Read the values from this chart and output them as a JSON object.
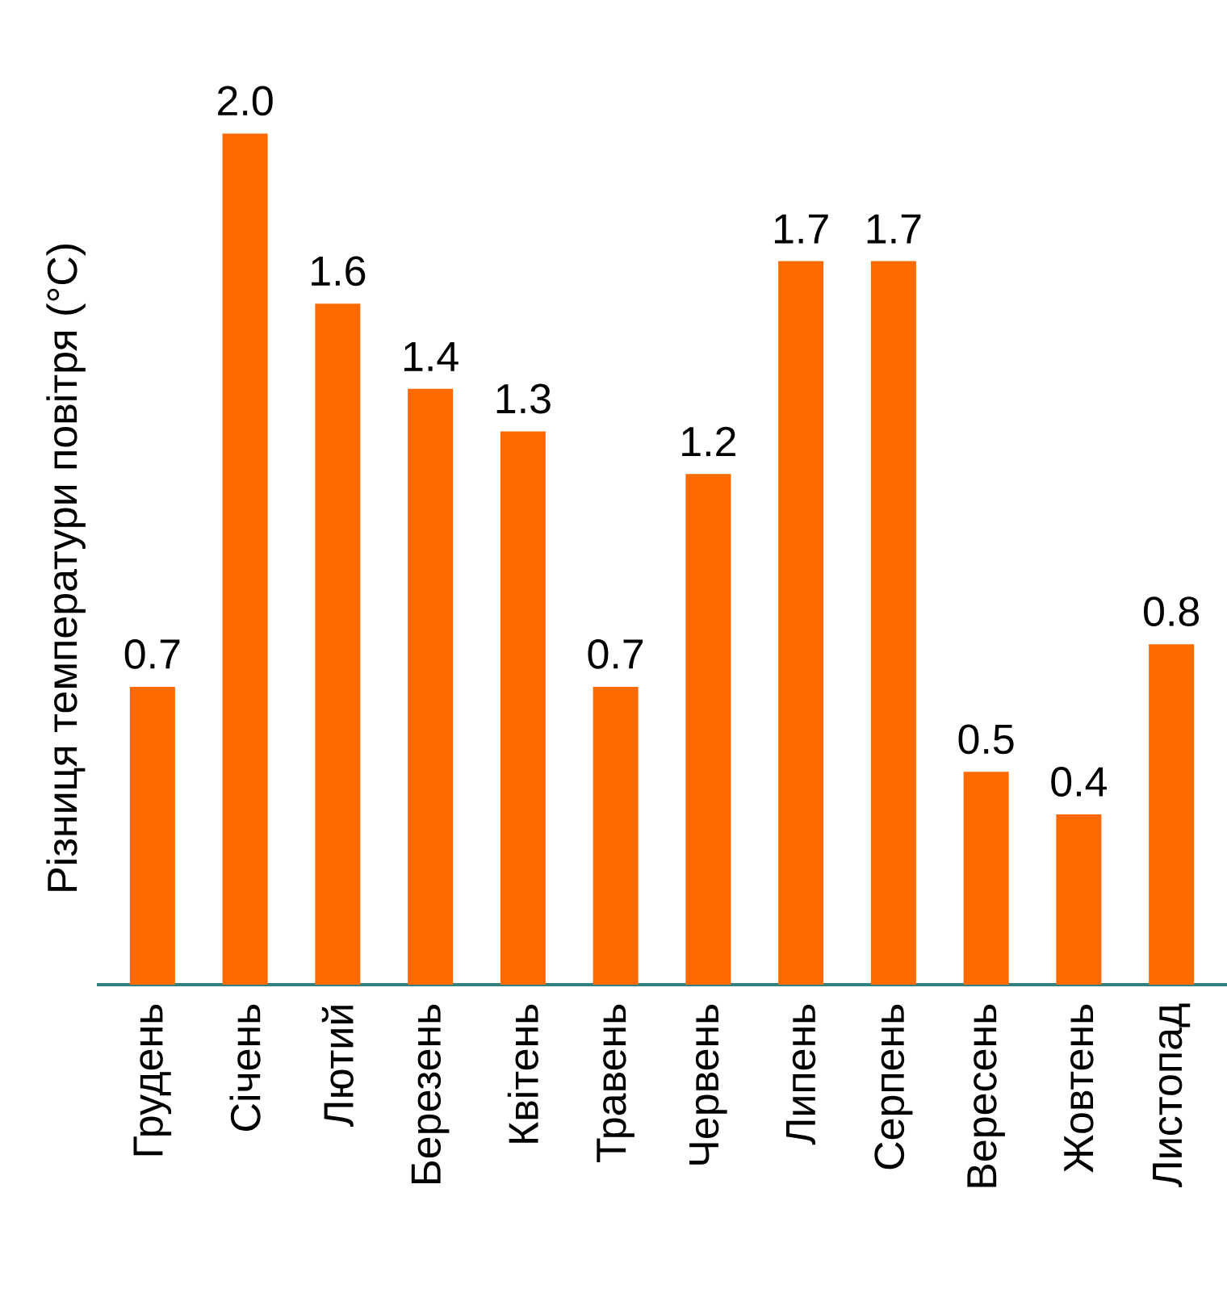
{
  "chart_data": {
    "type": "bar",
    "ylabel": "Різниця температури повітря (°C)",
    "categories": [
      "Грудень",
      "Січень",
      "Лютий",
      "Березень",
      "Квітень",
      "Травень",
      "Червень",
      "Липень",
      "Серпень",
      "Вересень",
      "Жовтень",
      "Листопад"
    ],
    "values": [
      0.7,
      2.0,
      1.6,
      1.4,
      1.3,
      0.7,
      1.2,
      1.7,
      1.7,
      0.5,
      0.4,
      0.8
    ],
    "value_labels": [
      "0.7",
      "2.0",
      "1.6",
      "1.4",
      "1.3",
      "0.7",
      "1.2",
      "1.7",
      "1.7",
      "0.5",
      "0.4",
      "0.8"
    ],
    "color": "#ff6a00"
  }
}
